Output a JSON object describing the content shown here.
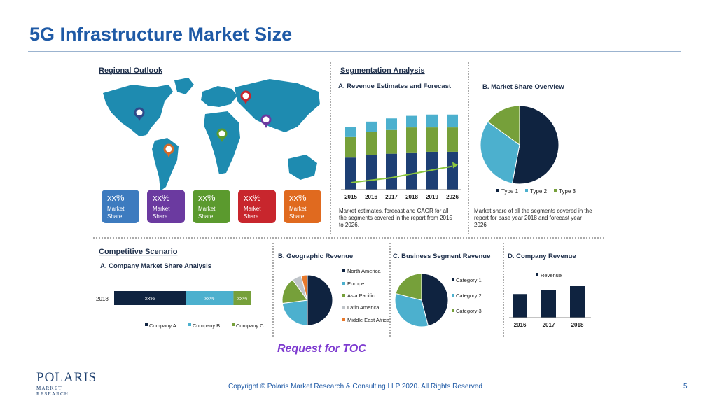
{
  "slide": {
    "title": "5G Infrastructure Market Size",
    "toc_link": "Request for TOC",
    "copyright": "Copyright © Polaris Market Research & Consulting LLP 2020. All Rights Reserved",
    "page_number": "5",
    "logo": {
      "word": "POLARIS",
      "tagline": "MARKET RESEARCH"
    }
  },
  "regional": {
    "heading": "Regional Outlook",
    "cards": [
      {
        "value": "xx%",
        "label1": "Market",
        "label2": "Share",
        "color": "#3d7bbf"
      },
      {
        "value": "xx%",
        "label1": "Market",
        "label2": "Share",
        "color": "#6b3aa0"
      },
      {
        "value": "xx%",
        "label1": "Market",
        "label2": "Share",
        "color": "#5b9a2e"
      },
      {
        "value": "xx%",
        "label1": "Market",
        "label2": "Share",
        "color": "#c8262d"
      },
      {
        "value": "xx%",
        "label1": "Market",
        "label2": "Share",
        "color": "#e06a1f"
      }
    ]
  },
  "segmentation": {
    "heading": "Segmentation Analysis",
    "revenue_title": "A. Revenue Estimates and Forecast",
    "revenue_caption": [
      "Market estimates, forecast and CAGR for all",
      "the segments covered in the report from 2015",
      "to 2026."
    ],
    "share_title": "B. Market Share Overview",
    "share_caption": [
      "Market share of all the segments covered in the",
      "report for base year 2018 and forecast year",
      "2026"
    ]
  },
  "competitive": {
    "heading": "Competitive Scenario",
    "subtitle": "A. Company Market Share Analysis",
    "bar_labels": [
      "xx%",
      "xx%",
      "xx%"
    ]
  },
  "geographic": {
    "title": "B. Geographic Revenue"
  },
  "business": {
    "title": "C. Business Segment Revenue"
  },
  "company": {
    "title": "D. Company Revenue"
  },
  "chart_data": [
    {
      "type": "bar",
      "title": "A. Revenue Estimates and Forecast",
      "stacked": true,
      "categories": [
        "2015",
        "2016",
        "2017",
        "2018",
        "2019",
        "2026"
      ],
      "series": [
        {
          "values": [
            50,
            54,
            56,
            58,
            59,
            59
          ],
          "color": "#1d3f74"
        },
        {
          "values": [
            32,
            36,
            37,
            39,
            38,
            38
          ],
          "color": "#76a03a"
        },
        {
          "values": [
            16,
            16,
            18,
            18,
            20,
            20
          ],
          "color": "#4cb0ce"
        }
      ],
      "ylim": [
        0,
        120
      ],
      "trend_line": true
    },
    {
      "type": "pie",
      "title": "B. Market Share Overview",
      "labels": [
        "Type 1",
        "Type 2",
        "Type 3"
      ],
      "values": [
        53,
        32,
        15
      ],
      "colors": [
        "#0f2340",
        "#4cb0ce",
        "#76a03a"
      ]
    },
    {
      "type": "bar",
      "title": "A. Company Market Share Analysis",
      "orientation": "horizontal",
      "stacked": true,
      "categories": [
        "2018"
      ],
      "series": [
        {
          "name": "Company A",
          "values": [
            60
          ],
          "color": "#0f2340"
        },
        {
          "name": "Company B",
          "values": [
            40
          ],
          "color": "#4cb0ce"
        },
        {
          "name": "Company C",
          "values": [
            15
          ],
          "color": "#76a03a"
        }
      ]
    },
    {
      "type": "pie",
      "title": "B. Geographic Revenue",
      "labels": [
        "North America",
        "Europe",
        "Asia Pacific",
        "Latin America",
        "Middle East Africa"
      ],
      "values": [
        50,
        23,
        17,
        6,
        4
      ],
      "colors": [
        "#0f2340",
        "#4cb0ce",
        "#76a03a",
        "#bfc4c9",
        "#e8792b"
      ]
    },
    {
      "type": "pie",
      "title": "C. Business Segment Revenue",
      "labels": [
        "Category 1",
        "Category 2",
        "Category 3"
      ],
      "values": [
        46,
        33,
        21
      ],
      "colors": [
        "#0f2340",
        "#4cb0ce",
        "#76a03a"
      ]
    },
    {
      "type": "bar",
      "title": "D. Company Revenue",
      "categories": [
        "2016",
        "2017",
        "2018"
      ],
      "series": [
        {
          "name": "Revenue",
          "values": [
            30,
            35,
            40
          ],
          "color": "#0f2340"
        }
      ],
      "ylim": [
        0,
        80
      ]
    }
  ]
}
